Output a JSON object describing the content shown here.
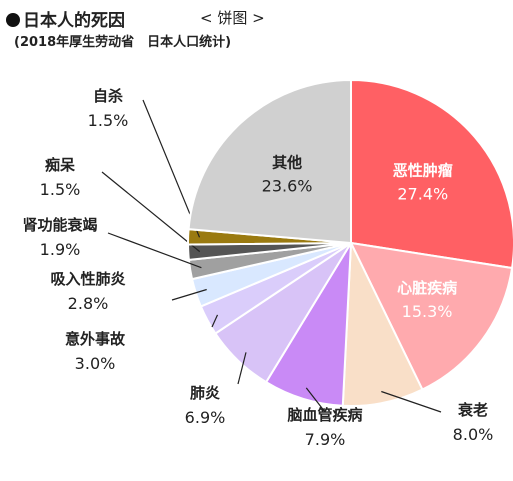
{
  "header": {
    "title": "日本人的死因",
    "chart_type_label": "< 饼图 >",
    "source": "(2018年厚生劳动省　日本人口统计)"
  },
  "chart_data": {
    "type": "pie",
    "title": "日本人的死因",
    "subtitle": "(2018年厚生劳动省　日本人口统计)",
    "unit": "%",
    "slices": [
      {
        "label": "恶性肿瘤",
        "value": 27.4,
        "value_text": "27.4%",
        "color": "#FF6064",
        "label_inside": true,
        "label_color": "#ffffff"
      },
      {
        "label": "心脏疾病",
        "value": 15.3,
        "value_text": "15.3%",
        "color": "#FFAAAE",
        "label_inside": true,
        "label_color": "#ffffff"
      },
      {
        "label": "衰老",
        "value": 8.0,
        "value_text": "8.0%",
        "color": "#F9DFC8",
        "label_inside": false
      },
      {
        "label": "脑血管疾病",
        "value": 7.9,
        "value_text": "7.9%",
        "color": "#C98AF6",
        "label_inside": false
      },
      {
        "label": "肺炎",
        "value": 6.9,
        "value_text": "6.9%",
        "color": "#D8C3F7",
        "label_inside": false
      },
      {
        "label": "意外事故",
        "value": 3.0,
        "value_text": "3.0%",
        "color": "#DACDFB",
        "label_inside": false
      },
      {
        "label": "吸入性肺炎",
        "value": 2.8,
        "value_text": "2.8%",
        "color": "#D9E8FF",
        "label_inside": false
      },
      {
        "label": "肾功能衰竭",
        "value": 1.9,
        "value_text": "1.9%",
        "color": "#A0A0A0",
        "label_inside": false
      },
      {
        "label": "痴呆",
        "value": 1.5,
        "value_text": "1.5%",
        "color": "#555555",
        "label_inside": false
      },
      {
        "label": "自杀",
        "value": 1.5,
        "value_text": "1.5%",
        "color": "#9A7A10",
        "label_inside": false
      },
      {
        "label": "其他",
        "value": 23.6,
        "value_text": "23.6%",
        "color": "#D0D0D0",
        "label_inside": true,
        "label_color": "#222222"
      }
    ]
  }
}
